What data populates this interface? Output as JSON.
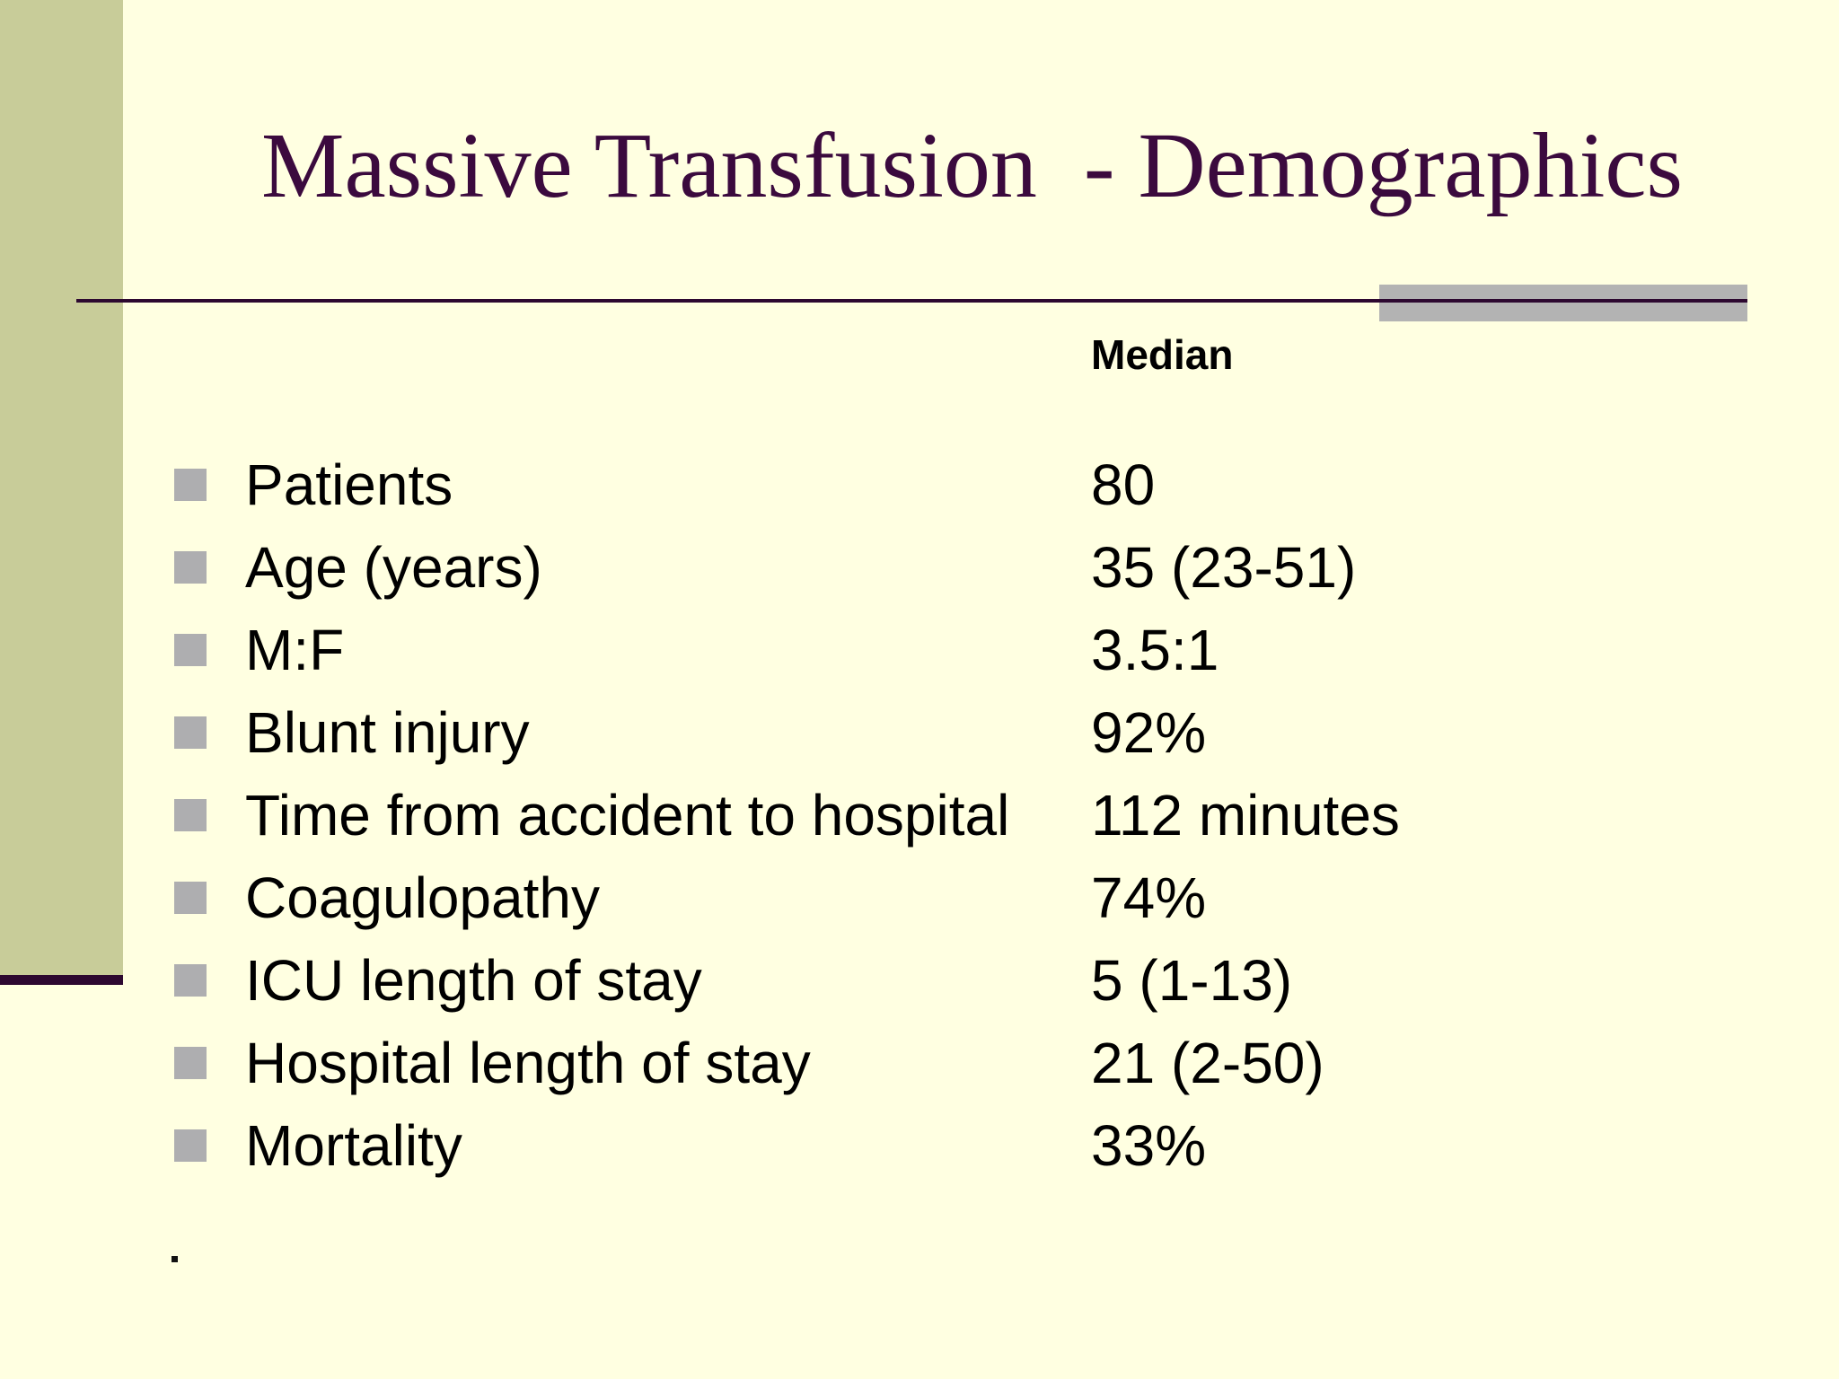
{
  "slide": {
    "title": "Massive Transfusion  - Demographics",
    "column_header": "Median",
    "rows": [
      {
        "label": "Patients",
        "value": "80"
      },
      {
        "label": "Age (years)",
        "value": "35 (23-51)"
      },
      {
        "label": "M:F",
        "value": "3.5:1"
      },
      {
        "label": "Blunt injury",
        "value": "92%"
      },
      {
        "label": "Time from accident to hospital",
        "value": "112 minutes"
      },
      {
        "label": "Coagulopathy",
        "value": "74%"
      },
      {
        "label": "ICU length of stay",
        "value": "5 (1-13)"
      },
      {
        "label": "Hospital length of stay",
        "value": "21 (2-50)"
      },
      {
        "label": "Mortality",
        "value": "33%"
      }
    ],
    "footnote": ".",
    "colors": {
      "background": "#FFFFE1",
      "sidebar": "#C8CC99",
      "title_text": "#3B0A3E",
      "rule": "#2D0830",
      "accent_rect": "#B3B3B3",
      "bullet": "#AEAEB0",
      "body_text": "#000000"
    }
  }
}
